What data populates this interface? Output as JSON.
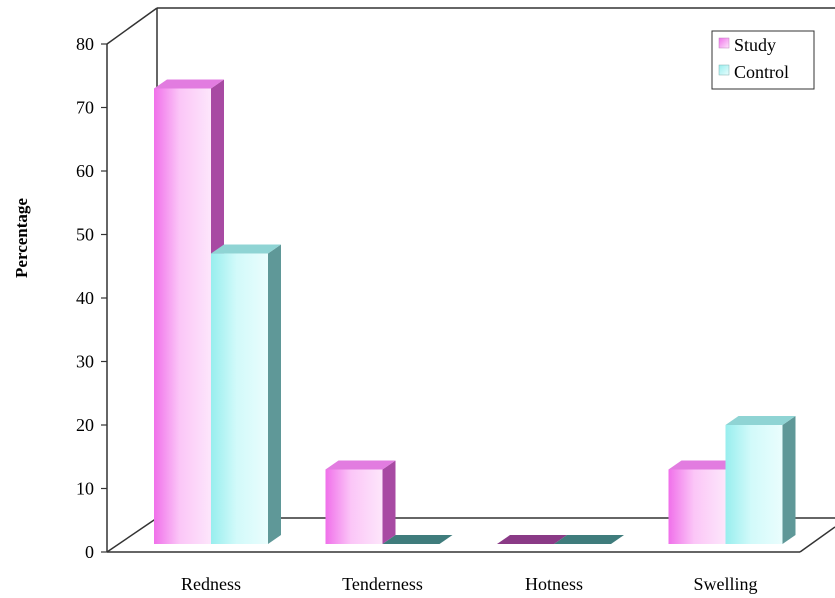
{
  "chart_data": {
    "type": "bar",
    "title": "",
    "xlabel": "",
    "ylabel": "Percentage",
    "ylim": [
      0,
      80
    ],
    "yticks": [
      0,
      10,
      20,
      30,
      40,
      50,
      60,
      70,
      80
    ],
    "categories": [
      "Redness",
      "Tenderness",
      "Hotness",
      "Swelling"
    ],
    "series": [
      {
        "name": "Study",
        "values": [
          73,
          13,
          0,
          13
        ],
        "color": "#f5a6f0"
      },
      {
        "name": "Control",
        "values": [
          47,
          0,
          0,
          20
        ],
        "color": "#bff4f4"
      }
    ],
    "legend_position": "top-right",
    "grid": false,
    "style": "3d-clustered-column"
  }
}
